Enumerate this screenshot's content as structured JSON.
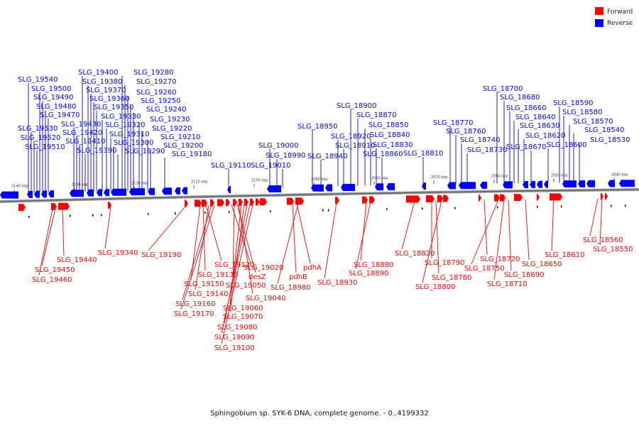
{
  "legend": {
    "forward_label": "Forward",
    "reverse_label": "Reverse",
    "forward_color": "#ff0000",
    "reverse_color": "#0000ff"
  },
  "caption": "Sphingobium sp. SYK-6 DNA, complete genome. - 0..4199332",
  "ticks": [
    "2140 kbp",
    "2130 kbp",
    "2120 kbp",
    "2110 kbp",
    "2100 kbp",
    "2090 kbp",
    "2080 kbp",
    "2070 kbp",
    "2060 kbp",
    "2050 kbp",
    "2040 kbp"
  ],
  "reverse_genes": [
    "SLG_19540",
    "SLG_19530",
    "SLG_19520",
    "SLG_19510",
    "SLG_19500",
    "SLG_19490",
    "SLG_19480",
    "SLG_19470",
    "SLG_19430",
    "SLG_19420",
    "SLG_19410",
    "SLG_19400",
    "SLG_19390",
    "SLG_19380",
    "SLG_19370",
    "SLG_19360",
    "SLG_19350",
    "SLG_19330",
    "SLG_19320",
    "SLG_19310",
    "SLG_19300",
    "SLG_19290",
    "SLG_19280",
    "SLG_19270",
    "SLG_19260",
    "SLG_19250",
    "SLG_19240",
    "SLG_19230",
    "SLG_19220",
    "SLG_19210",
    "SLG_19200",
    "SLG_19180",
    "SLG_19110",
    "SLG_19000",
    "SLG_18990",
    "SLG_19010",
    "SLG_18950",
    "SLG_18940",
    "SLG_18920",
    "SLG_18910",
    "SLG_18900",
    "SLG_18870",
    "SLG_18850",
    "SLG_18840",
    "SLG_18830",
    "SLG_18860",
    "SLG_18810",
    "SLG_18770",
    "SLG_18760",
    "SLG_18740",
    "SLG_18730",
    "SLG_18700",
    "SLG_18680",
    "SLG_18660",
    "SLG_18640",
    "SLG_18630",
    "SLG_18620",
    "SLG_18670",
    "SLG_18600",
    "SLG_18590",
    "SLG_18580",
    "SLG_18570",
    "SLG_18540",
    "SLG_18530"
  ],
  "forward_genes": [
    "SLG_19440",
    "SLG_19450",
    "SLG_19460",
    "SLG_19340",
    "SLG_19190",
    "SLG_19120",
    "SLG_19130",
    "SLG_19150",
    "SLG_19140",
    "SLG_19160",
    "SLG_19170",
    "SLG_19020",
    "desZ",
    "SLG_19050",
    "SLG_19040",
    "SLG_19060",
    "SLG_19070",
    "SLG_19080",
    "SLG_19090",
    "SLG_19100",
    "pdhA",
    "pdhB",
    "SLG_18980",
    "SLG_18930",
    "SLG_18880",
    "SLG_18890",
    "SLG_18820",
    "SLG_18790",
    "SLG_18780",
    "SLG_18800",
    "SLG_18720",
    "SLG_18750",
    "SLG_18690",
    "SLG_18710",
    "SLG_18650",
    "SLG_18610",
    "SLG_18560",
    "SLG_18550"
  ]
}
